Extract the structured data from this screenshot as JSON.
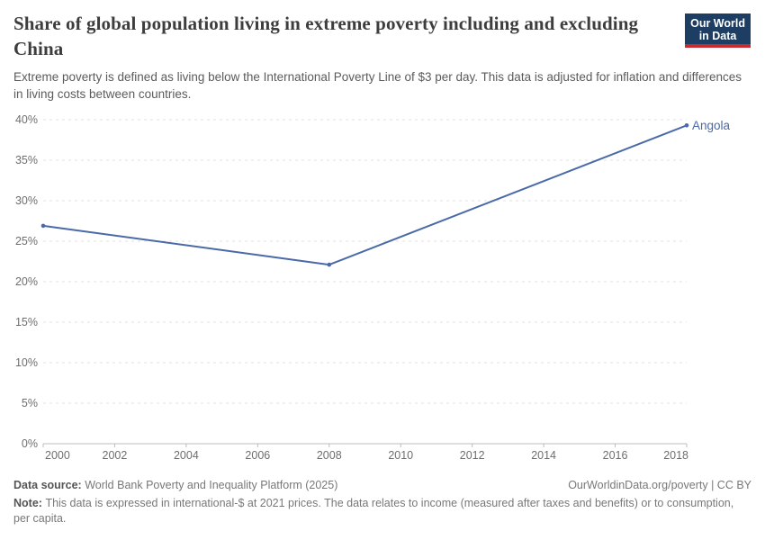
{
  "header": {
    "title": "Share of global population living in extreme poverty including and excluding China",
    "subtitle": "Extreme poverty is defined as living below the International Poverty Line of $3 per day. This data is adjusted for inflation and differences in living costs between countries."
  },
  "logo": {
    "line1": "Our World",
    "line2": "in Data",
    "bg_color": "#1d3d63",
    "stripe_color": "#c52b31"
  },
  "chart_data": {
    "type": "line",
    "title": "Share of global population living in extreme poverty including and excluding China",
    "x": [
      2000,
      2008,
      2018
    ],
    "series": [
      {
        "name": "Angola",
        "color": "#4a69a8",
        "values": [
          26.9,
          22.1,
          39.3
        ]
      }
    ],
    "end_label": "Angola",
    "x_ticks": [
      2000,
      2002,
      2004,
      2006,
      2008,
      2010,
      2012,
      2014,
      2016,
      2018
    ],
    "y_ticks": [
      0,
      5,
      10,
      15,
      20,
      25,
      30,
      35,
      40
    ],
    "y_tick_suffix": "%",
    "xlim": [
      2000,
      2018
    ],
    "ylim": [
      0,
      40
    ],
    "grid": "horizontal-dashed",
    "legend_position": "end-of-line",
    "colors": {
      "gridline": "#e0e0e0",
      "axis": "#bcbcbc",
      "tick_label": "#6e6e6e"
    }
  },
  "footer": {
    "data_source_label": "Data source:",
    "data_source_text": "World Bank Poverty and Inequality Platform (2025)",
    "link": "OurWorldinData.org/poverty",
    "separator": " | ",
    "license": "CC BY",
    "note_label": "Note:",
    "note_text": "This data is expressed in international-$ at 2021 prices. The data relates to income (measured after taxes and benefits) or to consumption, per capita."
  }
}
